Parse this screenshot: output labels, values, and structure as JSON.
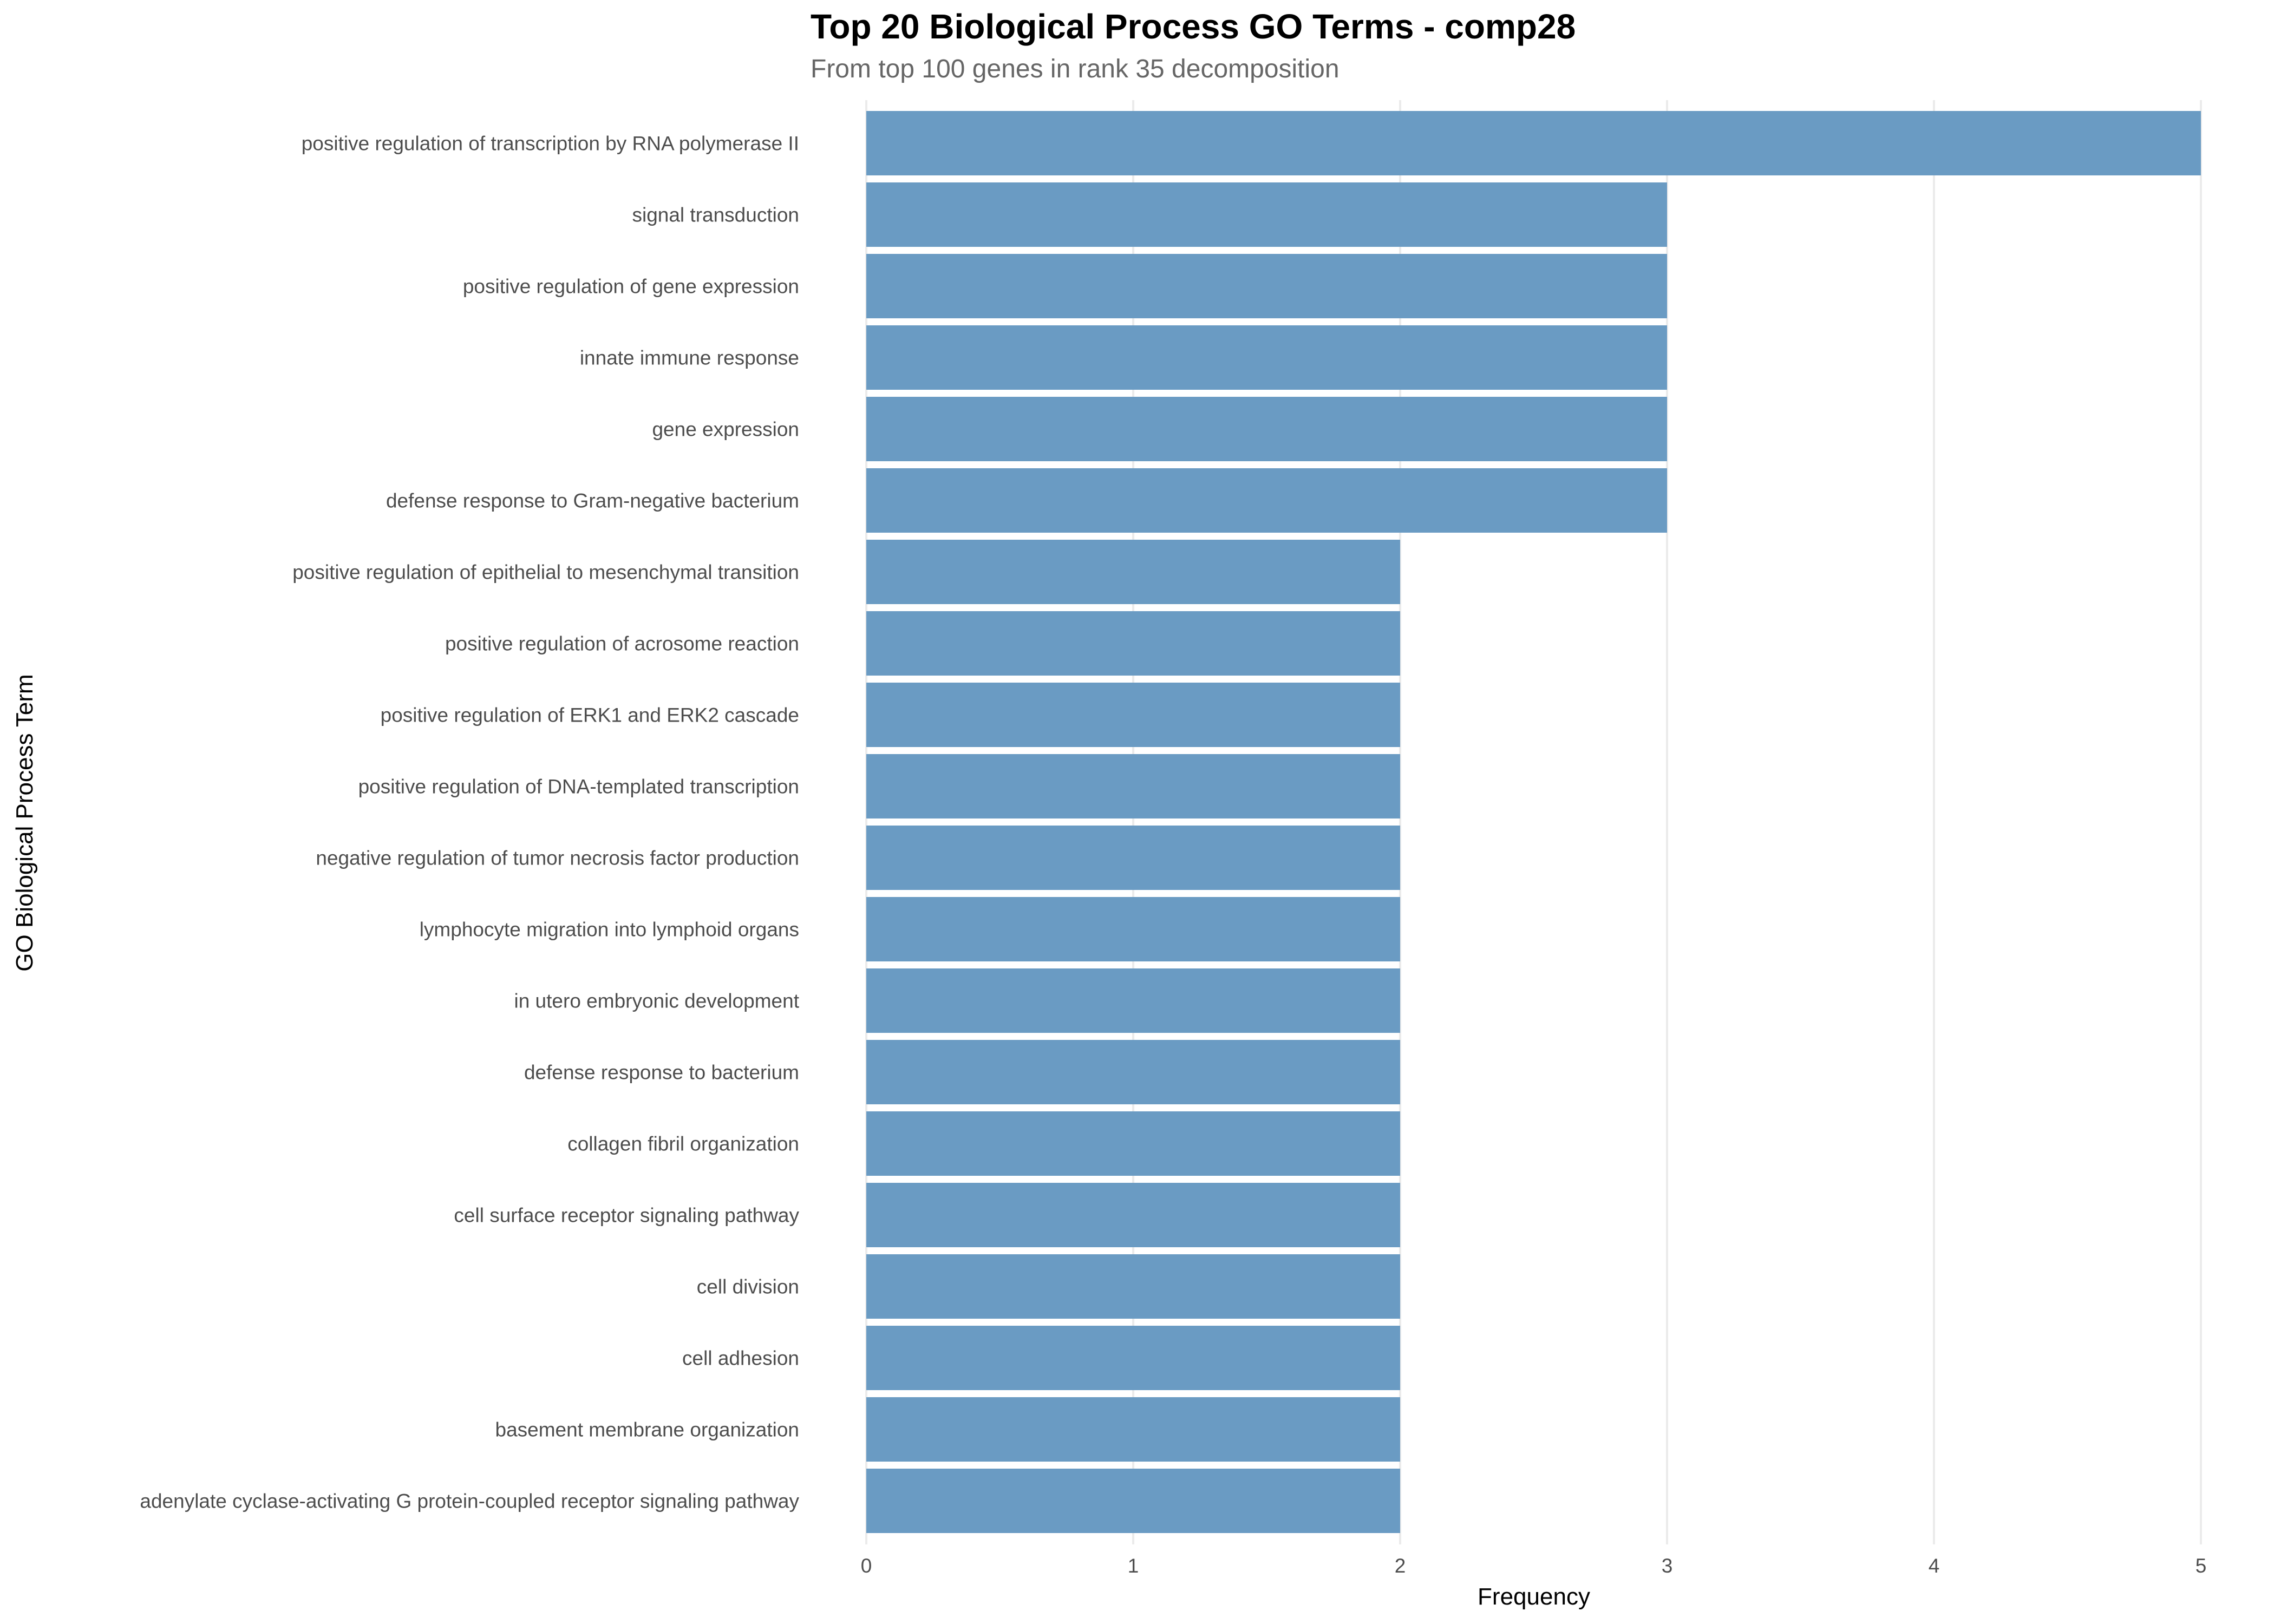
{
  "chart_data": {
    "type": "bar",
    "orientation": "horizontal",
    "title": "Top 20 Biological Process GO Terms - comp28",
    "subtitle": "From top 100 genes in rank 35 decomposition",
    "xlabel": "Frequency",
    "ylabel": "GO Biological Process Term",
    "xlim": [
      0,
      5
    ],
    "xticks": [
      "0",
      "1",
      "2",
      "3",
      "4",
      "5"
    ],
    "grid": true,
    "bar_color": "#6a9bc3",
    "categories": [
      "positive regulation of transcription by RNA polymerase II",
      "signal transduction",
      "positive regulation of gene expression",
      "innate immune response",
      "gene expression",
      "defense response to Gram-negative bacterium",
      "positive regulation of epithelial to mesenchymal transition",
      "positive regulation of acrosome reaction",
      "positive regulation of ERK1 and ERK2 cascade",
      "positive regulation of DNA-templated transcription",
      "negative regulation of tumor necrosis factor production",
      "lymphocyte migration into lymphoid organs",
      "in utero embryonic development",
      "defense response to bacterium",
      "collagen fibril organization",
      "cell surface receptor signaling pathway",
      "cell division",
      "cell adhesion",
      "basement membrane organization",
      "adenylate cyclase-activating G protein-coupled receptor signaling pathway"
    ],
    "values": [
      5,
      3,
      3,
      3,
      3,
      3,
      2,
      2,
      2,
      2,
      2,
      2,
      2,
      2,
      2,
      2,
      2,
      2,
      2,
      2
    ]
  }
}
